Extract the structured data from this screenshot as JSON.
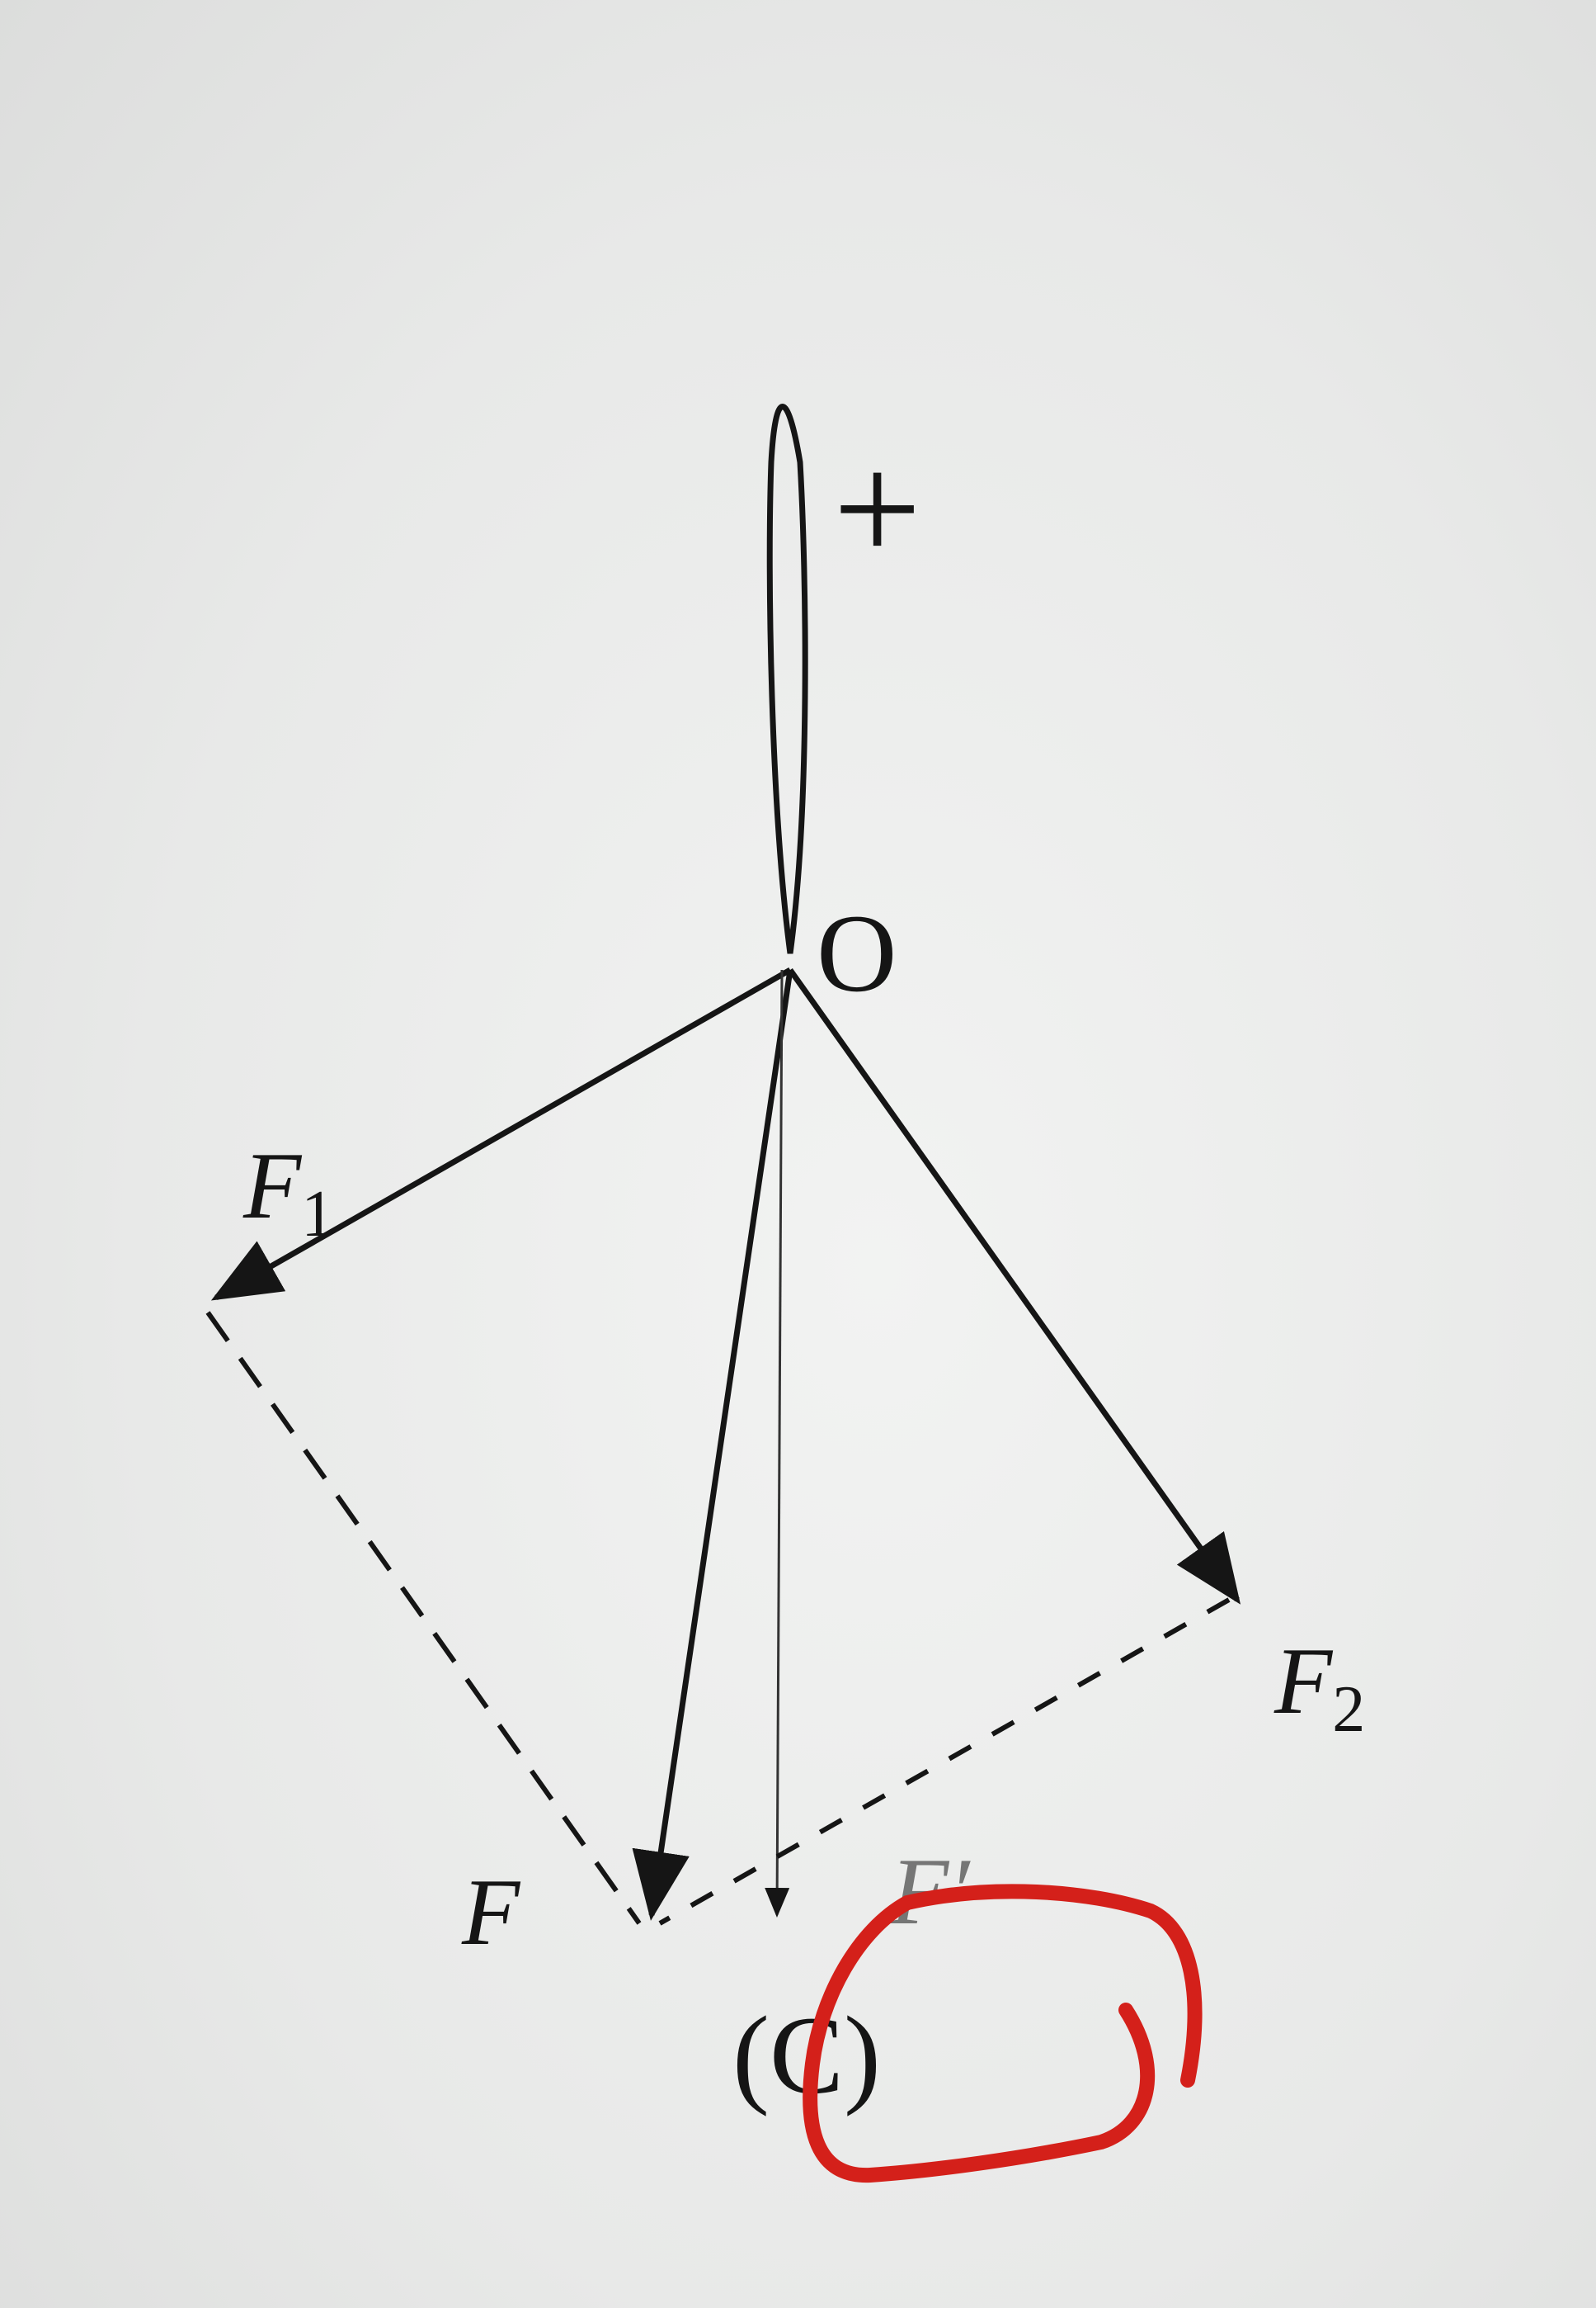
{
  "figure": {
    "plus_sign": "+",
    "origin_label": "O",
    "force_labels": {
      "f1": "F",
      "f1_sub": "1",
      "f2": "F",
      "f2_sub": "2",
      "f": "F",
      "f_prime": "F′"
    },
    "caption": "(C)",
    "colors": {
      "ink": "#151515",
      "mark": "#d4201a",
      "background": "#e9eaea"
    }
  }
}
